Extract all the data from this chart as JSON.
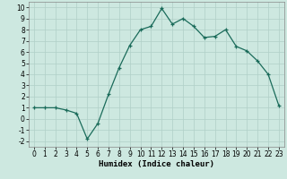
{
  "x": [
    0,
    1,
    2,
    3,
    4,
    5,
    6,
    7,
    8,
    9,
    10,
    11,
    12,
    13,
    14,
    15,
    16,
    17,
    18,
    19,
    20,
    21,
    22,
    23
  ],
  "y": [
    1,
    1,
    1,
    0.8,
    0.5,
    -1.8,
    -0.4,
    2.2,
    4.6,
    6.6,
    8.0,
    8.3,
    9.9,
    8.5,
    9.0,
    8.3,
    7.3,
    7.4,
    8.0,
    6.5,
    6.1,
    5.2,
    4.0,
    1.2
  ],
  "line_color": "#1a6b5a",
  "marker": "+",
  "markersize": 3.5,
  "linewidth": 0.9,
  "markeredgewidth": 0.9,
  "bg_color": "#cde8e0",
  "grid_color": "#b0cfc7",
  "xlabel": "Humidex (Indice chaleur)",
  "xlim": [
    -0.5,
    23.5
  ],
  "ylim": [
    -2.5,
    10.5
  ],
  "yticks": [
    -2,
    -1,
    0,
    1,
    2,
    3,
    4,
    5,
    6,
    7,
    8,
    9,
    10
  ],
  "xticks": [
    0,
    1,
    2,
    3,
    4,
    5,
    6,
    7,
    8,
    9,
    10,
    11,
    12,
    13,
    14,
    15,
    16,
    17,
    18,
    19,
    20,
    21,
    22,
    23
  ],
  "xlabel_fontsize": 6.5,
  "tick_fontsize": 5.5
}
